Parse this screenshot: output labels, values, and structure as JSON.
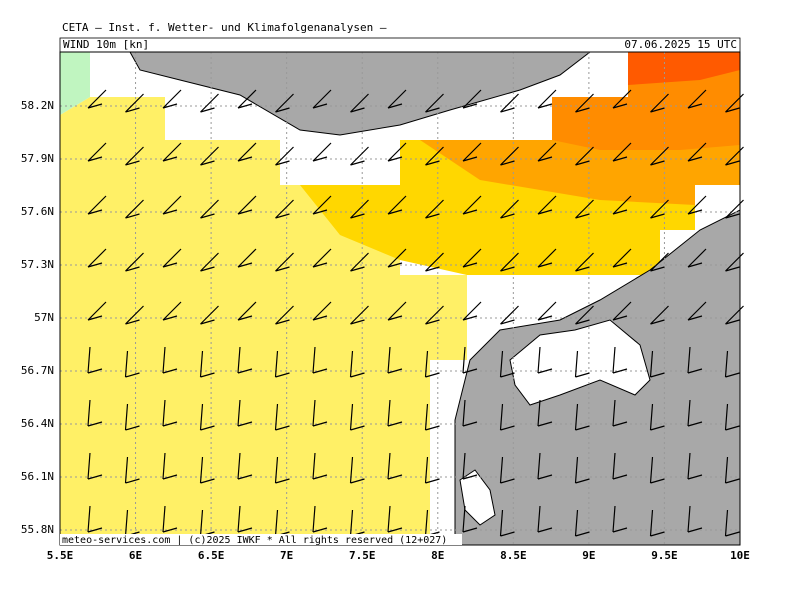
{
  "header": {
    "title": "CETA — Inst. f. Wetter- und Klimafolgenanalysen —",
    "field": "WIND 10m [kn]",
    "valid": "07.06.2025 15 UTC"
  },
  "footer": "meteo-services.com | (c)2025 IWKF * All rights reserved (12+027)",
  "lat_labels": [
    "58.2N",
    "57.9N",
    "57.6N",
    "57.3N",
    "57N",
    "56.7N",
    "56.4N",
    "56.1N",
    "55.8N"
  ],
  "lon_labels": [
    "5.5E",
    "6E",
    "6.5E",
    "7E",
    "7.5E",
    "8E",
    "8.5E",
    "9E",
    "9.5E",
    "10E"
  ]
}
